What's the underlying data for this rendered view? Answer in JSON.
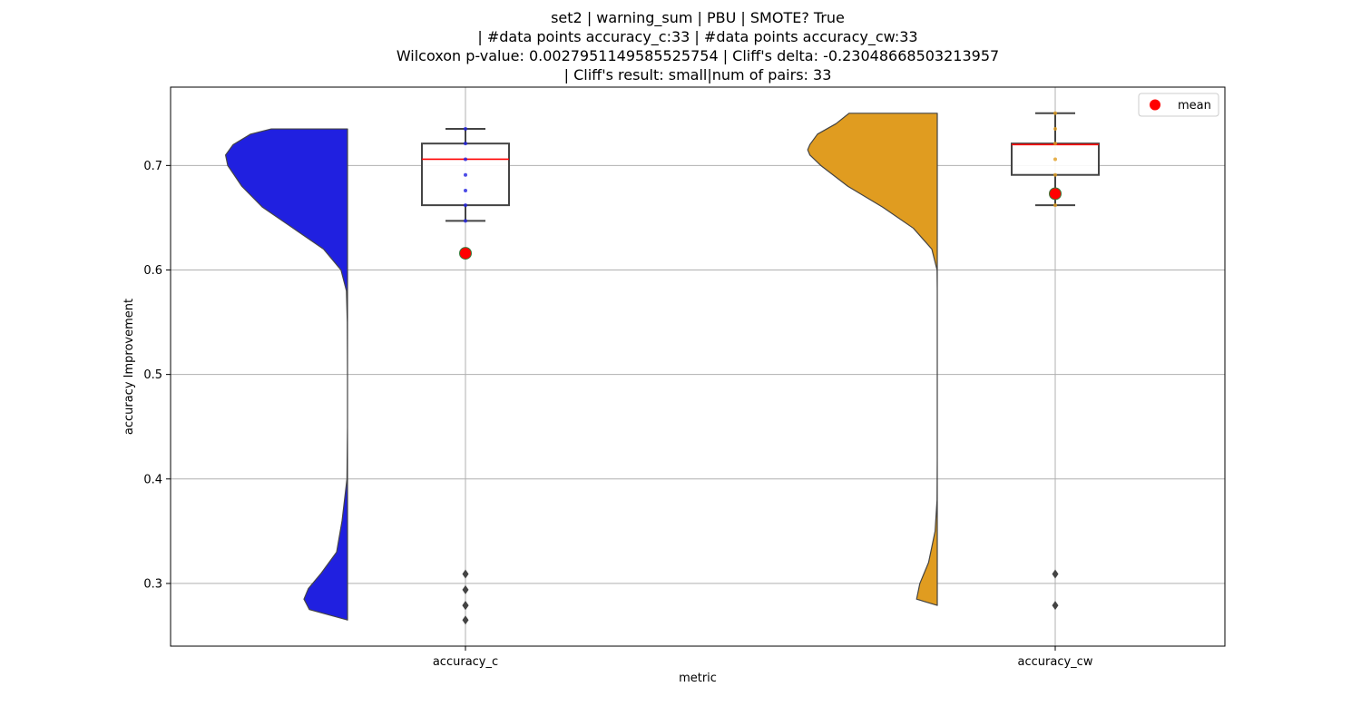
{
  "chart_data": {
    "type": "violin",
    "title_lines": [
      "set2 | warning_sum | PBU | SMOTE? True",
      "| #data points accuracy_c:33 | #data points accuracy_cw:33",
      "Wilcoxon p-value: 0.0027951149585525754 | Cliff's delta: -0.23048668503213957",
      "| Cliff's result: small|num of pairs: 33"
    ],
    "xlabel": "metric",
    "ylabel": "accuracy Improvement",
    "ylim": [
      0.24,
      0.775
    ],
    "yticks": [
      0.3,
      0.4,
      0.5,
      0.6,
      0.7
    ],
    "ytick_labels": [
      "0.3",
      "0.4",
      "0.5",
      "0.6",
      "0.7"
    ],
    "grid": true,
    "legend": {
      "position": "top-right",
      "entries": [
        {
          "label": "mean",
          "color": "#ff0000"
        }
      ]
    },
    "categories": [
      "accuracy_c",
      "accuracy_cw"
    ],
    "series": [
      {
        "category": "accuracy_c",
        "violin_color": "#2020e0",
        "density": [
          [
            0.265,
            0.0
          ],
          [
            0.275,
            0.35
          ],
          [
            0.285,
            0.4
          ],
          [
            0.295,
            0.36
          ],
          [
            0.31,
            0.24
          ],
          [
            0.33,
            0.1
          ],
          [
            0.36,
            0.05
          ],
          [
            0.4,
            0.005
          ],
          [
            0.45,
            0.0
          ],
          [
            0.5,
            0.0
          ],
          [
            0.55,
            0.002
          ],
          [
            0.58,
            0.01
          ],
          [
            0.6,
            0.06
          ],
          [
            0.62,
            0.22
          ],
          [
            0.64,
            0.5
          ],
          [
            0.66,
            0.78
          ],
          [
            0.68,
            0.97
          ],
          [
            0.7,
            1.1
          ],
          [
            0.71,
            1.12
          ],
          [
            0.72,
            1.05
          ],
          [
            0.73,
            0.89
          ],
          [
            0.735,
            0.7
          ]
        ],
        "box": {
          "q1": 0.662,
          "median": 0.706,
          "q3": 0.721,
          "whisker_low": 0.647,
          "whisker_high": 0.735,
          "median_color": "#ff0000"
        },
        "points": [
          0.735,
          0.721,
          0.706,
          0.691,
          0.676,
          0.662,
          0.647
        ],
        "point_color": "#2020e0",
        "outliers": [
          0.309,
          0.294,
          0.279,
          0.279,
          0.265
        ],
        "mean": 0.616
      },
      {
        "category": "accuracy_cw",
        "violin_color": "#e09c20",
        "density": [
          [
            0.279,
            0.0
          ],
          [
            0.285,
            0.19
          ],
          [
            0.3,
            0.16
          ],
          [
            0.32,
            0.08
          ],
          [
            0.35,
            0.02
          ],
          [
            0.38,
            0.002
          ],
          [
            0.42,
            0.0
          ],
          [
            0.5,
            0.0
          ],
          [
            0.58,
            0.0
          ],
          [
            0.6,
            0.002
          ],
          [
            0.62,
            0.05
          ],
          [
            0.64,
            0.22
          ],
          [
            0.66,
            0.5
          ],
          [
            0.68,
            0.82
          ],
          [
            0.7,
            1.07
          ],
          [
            0.71,
            1.17
          ],
          [
            0.715,
            1.19
          ],
          [
            0.72,
            1.17
          ],
          [
            0.73,
            1.1
          ],
          [
            0.74,
            0.93
          ],
          [
            0.75,
            0.81
          ]
        ],
        "box": {
          "q1": 0.691,
          "median": 0.72,
          "q3": 0.721,
          "whisker_low": 0.662,
          "whisker_high": 0.75,
          "median_color": "#ff0000"
        },
        "points": [
          0.75,
          0.735,
          0.721,
          0.706,
          0.691,
          0.676,
          0.662
        ],
        "point_color": "#e09c20",
        "outliers": [
          0.309,
          0.279
        ],
        "mean": 0.673
      }
    ]
  }
}
